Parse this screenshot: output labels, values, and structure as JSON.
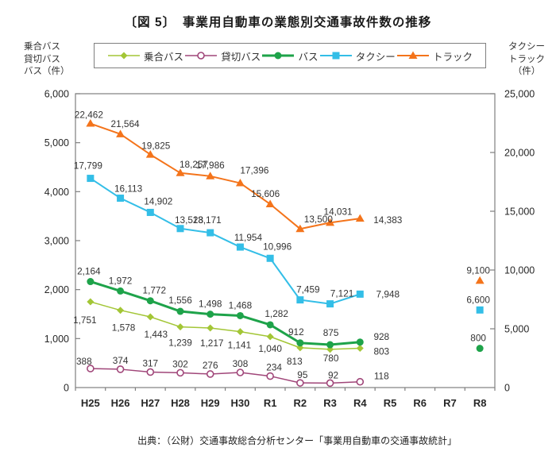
{
  "title": "〔図 5〕　事業用自動車の業態別交通事故件数の推移",
  "source": "出典：（公財）交通事故総合分析センター「事業用自動車の交通事故統計」",
  "left_axis_header": [
    "乗合バス",
    "貸切バス",
    "バス（件）"
  ],
  "right_axis_header": [
    "タクシー",
    "トラック",
    "（件）"
  ],
  "chart_data": {
    "type": "line",
    "grid": false,
    "legend_position": "top",
    "categories": [
      "H25",
      "H26",
      "H27",
      "H28",
      "H29",
      "H30",
      "R1",
      "R2",
      "R3",
      "R4",
      "R5",
      "R6",
      "R7",
      "R8"
    ],
    "left_axis": {
      "min": 0,
      "max": 6000,
      "step": 1000,
      "tick_values": [
        0,
        1000,
        2000,
        3000,
        4000,
        5000,
        6000
      ],
      "tick_labels": [
        "0",
        "1,000",
        "2,000",
        "3,000",
        "4,000",
        "5,000",
        "6,000"
      ]
    },
    "right_axis": {
      "min": 0,
      "max": 25000,
      "step": 5000,
      "tick_values": [
        0,
        5000,
        10000,
        15000,
        20000,
        25000
      ],
      "tick_labels": [
        "0",
        "5,000",
        "10,000",
        "15,000",
        "20,000",
        "25,000"
      ]
    },
    "series": [
      {
        "id": "route-bus",
        "name": "乗合バス",
        "axis": "left",
        "color": "#A3C636",
        "marker": "diamond",
        "line_width": 1.5,
        "values": [
          1751,
          1578,
          1443,
          1239,
          1217,
          1141,
          1040,
          813,
          780,
          803,
          null,
          null,
          null,
          null
        ],
        "labels": [
          "1,751",
          "1,578",
          "1,443",
          "1,239",
          "1,217",
          "1,141",
          "1,040",
          "813",
          "780",
          "803",
          null,
          null,
          null,
          null
        ],
        "label_default": {
          "dx": 0,
          "dy": 24
        },
        "label_offsets": {
          "0": {
            "dx": -7,
            "dy": 27
          },
          "1": {
            "dx": 4,
            "dy": 26
          },
          "2": {
            "dx": 7,
            "dy": 26
          },
          "4": {
            "dx": 2,
            "dy": 23
          },
          "5": {
            "dx": -1,
            "dy": 21
          },
          "6": {
            "dx": 0,
            "dy": 19
          },
          "7": {
            "dx": -7,
            "dy": 21
          },
          "8": {
            "dx": 1,
            "dy": 15
          },
          "9": {
            "dx": 27,
            "dy": 8
          }
        }
      },
      {
        "id": "charter-bus",
        "name": "貸切バス",
        "axis": "left",
        "color": "#A04679",
        "marker": "circle-open",
        "line_width": 1.5,
        "values": [
          388,
          374,
          317,
          302,
          276,
          308,
          234,
          95,
          92,
          118,
          null,
          null,
          null,
          null
        ],
        "labels": [
          "388",
          "374",
          "317",
          "302",
          "276",
          "308",
          "234",
          "95",
          "92",
          "118",
          null,
          null,
          null,
          null
        ],
        "label_default": {
          "dx": 0,
          "dy": -7
        },
        "label_offsets": {
          "0": {
            "dx": -8,
            "dy": -5
          },
          "6": {
            "dx": 5,
            "dy": -7
          },
          "7": {
            "dx": 3,
            "dy": -6
          },
          "8": {
            "dx": 4,
            "dy": -6
          },
          "9": {
            "dx": 27,
            "dy": -3
          }
        }
      },
      {
        "id": "bus",
        "name": "バス",
        "axis": "left",
        "color": "#1EA34A",
        "marker": "circle",
        "line_width": 3,
        "values": [
          2164,
          1972,
          1772,
          1556,
          1498,
          1468,
          1282,
          912,
          875,
          928,
          null,
          null,
          null,
          800
        ],
        "labels": [
          "2,164",
          "1,972",
          "1,772",
          "1,556",
          "1,498",
          "1,468",
          "1,282",
          "912",
          "875",
          "928",
          null,
          null,
          null,
          "800"
        ],
        "label_default": {
          "dx": 0,
          "dy": -9
        },
        "label_offsets": {
          "0": {
            "dx": -2,
            "dy": -9
          },
          "2": {
            "dx": 5,
            "dy": -9
          },
          "3": {
            "dx": 0,
            "dy": -10
          },
          "6": {
            "dx": 8,
            "dy": -10
          },
          "7": {
            "dx": -5,
            "dy": -10
          },
          "8": {
            "dx": 1,
            "dy": -11
          },
          "9": {
            "dx": 27,
            "dy": -3
          },
          "13": {
            "dx": -2,
            "dy": -9
          }
        }
      },
      {
        "id": "taxi",
        "name": "タクシー",
        "axis": "right",
        "color": "#33BEE7",
        "marker": "square",
        "line_width": 2,
        "values": [
          17799,
          16113,
          14902,
          13528,
          13171,
          11954,
          10996,
          7459,
          7121,
          7948,
          null,
          null,
          null,
          6600
        ],
        "labels": [
          "17,799",
          "16,113",
          "14,902",
          "13,528",
          "13,171",
          "11,954",
          "10,996",
          "7,459",
          "7,121",
          "7,948",
          null,
          null,
          null,
          "6,600"
        ],
        "label_default": {
          "dx": 0,
          "dy": -9
        },
        "label_offsets": {
          "0": {
            "dx": -3,
            "dy": -12
          },
          "1": {
            "dx": 10,
            "dy": -8
          },
          "2": {
            "dx": 10,
            "dy": -10
          },
          "3": {
            "dx": 11,
            "dy": -7
          },
          "4": {
            "dx": -4,
            "dy": -12
          },
          "5": {
            "dx": 10,
            "dy": -8
          },
          "6": {
            "dx": 9,
            "dy": -11
          },
          "7": {
            "dx": 10,
            "dy": -9
          },
          "8": {
            "dx": 15,
            "dy": -9
          },
          "9": {
            "dx": 35,
            "dy": 4
          },
          "13": {
            "dx": -2,
            "dy": -9
          }
        }
      },
      {
        "id": "truck",
        "name": "トラック",
        "axis": "right",
        "color": "#F4741B",
        "marker": "triangle",
        "line_width": 2,
        "values": [
          22462,
          21564,
          19825,
          18257,
          17986,
          17396,
          15606,
          13500,
          14031,
          14383,
          null,
          null,
          null,
          9100
        ],
        "labels": [
          "22,462",
          "21,564",
          "19,825",
          "18,257",
          "17,986",
          "17,396",
          "15,606",
          "13,500",
          "14,031",
          "14,383",
          null,
          null,
          null,
          "9,100"
        ],
        "label_default": {
          "dx": 0,
          "dy": -8
        },
        "label_offsets": {
          "0": {
            "dx": -2,
            "dy": -7
          },
          "1": {
            "dx": 6,
            "dy": -9
          },
          "2": {
            "dx": 7,
            "dy": -7
          },
          "3": {
            "dx": 17,
            "dy": -7
          },
          "4": {
            "dx": 0,
            "dy": -10
          },
          "5": {
            "dx": 18,
            "dy": -12
          },
          "6": {
            "dx": -6,
            "dy": -9
          },
          "7": {
            "dx": 23,
            "dy": -8
          },
          "8": {
            "dx": 10,
            "dy": -10
          },
          "9": {
            "dx": 35,
            "dy": 6
          },
          "13": {
            "dx": -2,
            "dy": -9
          }
        }
      }
    ]
  }
}
